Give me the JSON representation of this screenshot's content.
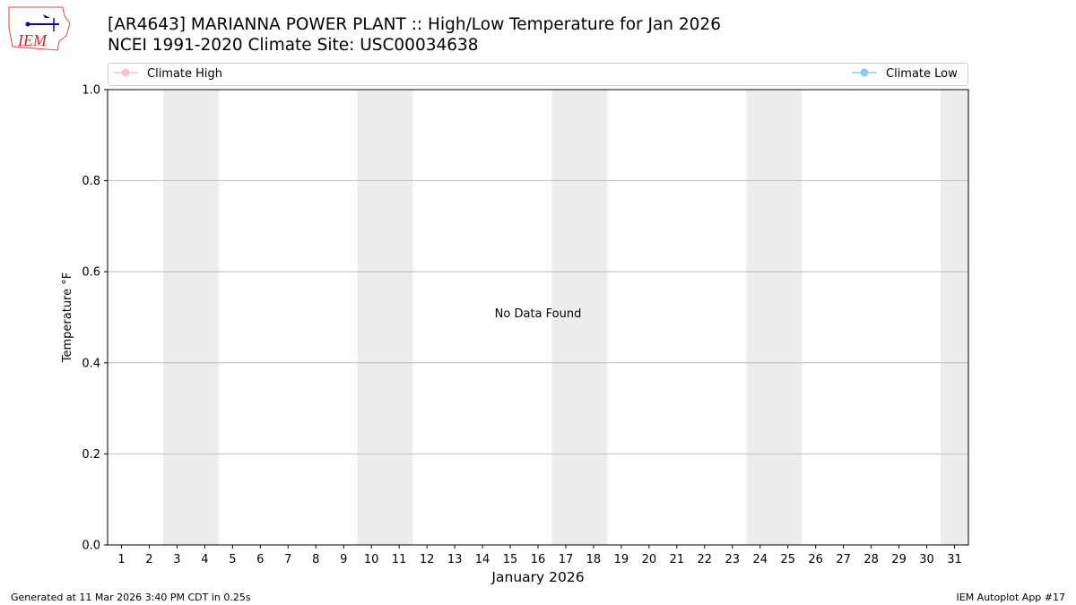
{
  "header": {
    "title_line1": "[AR4643] MARIANNA POWER PLANT :: High/Low Temperature for Jan 2026",
    "title_line2": "NCEI 1991-2020 Climate Site: USC00034638",
    "logo_text": "IEM"
  },
  "footer": {
    "generated": "Generated at 11 Mar 2026 3:40 PM CDT in 0.25s",
    "app": "IEM Autoplot App #17"
  },
  "chart_data": {
    "type": "line",
    "xlabel": "January 2026",
    "ylabel": "Temperature °F",
    "xlim": [
      0.5,
      31.5
    ],
    "ylim": [
      0,
      1
    ],
    "x_ticks": [
      1,
      2,
      3,
      4,
      5,
      6,
      7,
      8,
      9,
      10,
      11,
      12,
      13,
      14,
      15,
      16,
      17,
      18,
      19,
      20,
      21,
      22,
      23,
      24,
      25,
      26,
      27,
      28,
      29,
      30,
      31
    ],
    "y_ticks": [
      "0.0",
      "0.2",
      "0.4",
      "0.6",
      "0.8",
      "1.0"
    ],
    "grid": "y",
    "weekend_shading": [
      [
        3,
        4
      ],
      [
        10,
        11
      ],
      [
        17,
        18
      ],
      [
        24,
        25
      ],
      [
        31,
        31
      ]
    ],
    "shade_color": "#ededed",
    "annotation": "No Data Found",
    "legend": {
      "placement": "top",
      "entries": [
        {
          "name": "Climate High",
          "color": "#ffc0cb"
        },
        {
          "name": "Climate Low",
          "color": "#87ceeb"
        }
      ]
    },
    "series": [
      {
        "name": "Climate High",
        "values": []
      },
      {
        "name": "Climate Low",
        "values": []
      }
    ]
  }
}
